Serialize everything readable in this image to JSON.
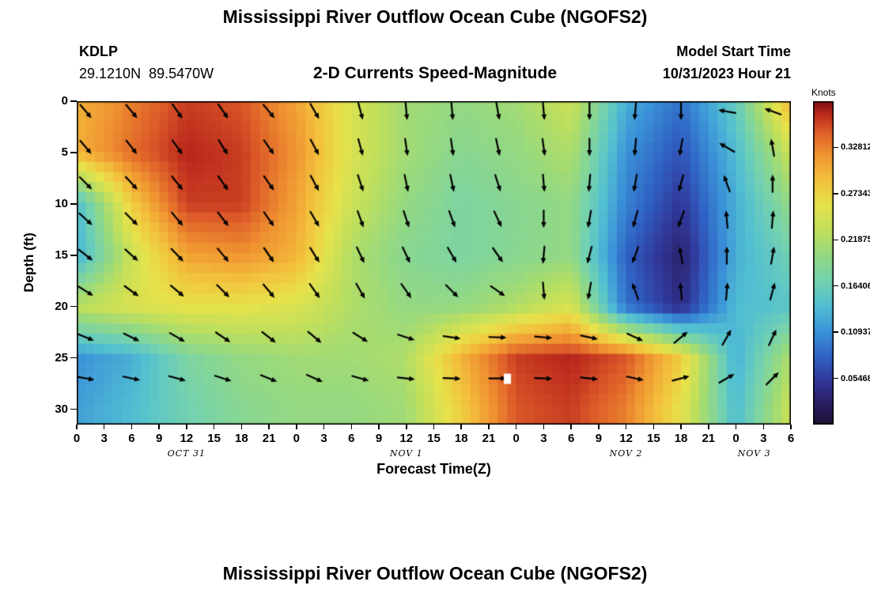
{
  "page": {
    "title_top": "Mississippi River Outflow Ocean Cube (NGOFS2)",
    "title_bottom": "Mississippi River Outflow Ocean Cube (NGOFS2)"
  },
  "header": {
    "station": "KDLP",
    "coordinates": "29.1210N  89.5470W",
    "subtitle": "2-D Currents Speed-Magnitude",
    "model_start_label": "Model Start Time",
    "model_start_value": "10/31/2023 Hour 21"
  },
  "chart_data": {
    "type": "heatmap",
    "title": "Mississippi River Outflow Ocean Cube (NGOFS2)",
    "subtitle": "2-D Currents Speed-Magnitude",
    "xlabel": "Forecast Time(Z)",
    "ylabel": "Depth (ft)",
    "hour_range": [
      0,
      78
    ],
    "depth_range_ft": [
      0,
      31.5
    ],
    "x_tick_hours": [
      0,
      3,
      6,
      9,
      12,
      15,
      18,
      21,
      24,
      27,
      30,
      33,
      36,
      39,
      42,
      45,
      48,
      51,
      54,
      57,
      60,
      63,
      66,
      69,
      72,
      75,
      78
    ],
    "x_tick_labels": [
      "0",
      "3",
      "6",
      "9",
      "12",
      "15",
      "18",
      "21",
      "0",
      "3",
      "6",
      "9",
      "12",
      "15",
      "18",
      "21",
      "0",
      "3",
      "6",
      "9",
      "12",
      "15",
      "18",
      "21",
      "0",
      "3",
      "6"
    ],
    "y_tick_depths": [
      0,
      5,
      10,
      15,
      20,
      25,
      30
    ],
    "day_labels": [
      {
        "text": "OCT 31",
        "hour": 12
      },
      {
        "text": "NOV 1",
        "hour": 36
      },
      {
        "text": "NOV 2",
        "hour": 60
      },
      {
        "text": "NOV 3",
        "hour": 74
      }
    ],
    "grid": {
      "hours": [
        0,
        6,
        12,
        18,
        24,
        30,
        36,
        42,
        48,
        54,
        60,
        66,
        72,
        78
      ],
      "depths_ft": [
        0,
        5,
        10,
        15,
        20,
        25,
        30
      ],
      "values_knots": [
        [
          0.3,
          0.33,
          0.36,
          0.35,
          0.31,
          0.25,
          0.21,
          0.2,
          0.21,
          0.24,
          0.13,
          0.09,
          0.16,
          0.3
        ],
        [
          0.3,
          0.34,
          0.37,
          0.36,
          0.32,
          0.25,
          0.21,
          0.19,
          0.2,
          0.22,
          0.11,
          0.07,
          0.14,
          0.24
        ],
        [
          0.14,
          0.28,
          0.36,
          0.36,
          0.31,
          0.24,
          0.2,
          0.18,
          0.19,
          0.2,
          0.1,
          0.05,
          0.13,
          0.2
        ],
        [
          0.13,
          0.24,
          0.31,
          0.32,
          0.3,
          0.22,
          0.19,
          0.18,
          0.19,
          0.2,
          0.08,
          0.03,
          0.13,
          0.17
        ],
        [
          0.23,
          0.25,
          0.26,
          0.26,
          0.25,
          0.22,
          0.2,
          0.2,
          0.22,
          0.25,
          0.09,
          0.04,
          0.14,
          0.15
        ],
        [
          0.11,
          0.13,
          0.18,
          0.2,
          0.21,
          0.21,
          0.22,
          0.3,
          0.36,
          0.37,
          0.35,
          0.28,
          0.13,
          0.22
        ],
        [
          0.12,
          0.14,
          0.17,
          0.19,
          0.2,
          0.2,
          0.21,
          0.28,
          0.35,
          0.36,
          0.33,
          0.26,
          0.14,
          0.24
        ]
      ]
    },
    "arrows": {
      "hours": [
        1,
        6,
        11,
        16,
        21,
        26,
        31,
        36,
        41,
        46,
        51,
        56,
        61,
        66,
        71,
        76
      ],
      "depths_ft": [
        1,
        4.5,
        8,
        11.5,
        15,
        18.5,
        23,
        27
      ],
      "angles_deg_cw_from_east": [
        [
          50,
          50,
          55,
          55,
          50,
          60,
          75,
          85,
          85,
          80,
          85,
          90,
          95,
          90,
          -170,
          -160
        ],
        [
          50,
          52,
          55,
          58,
          55,
          62,
          75,
          82,
          82,
          78,
          82,
          90,
          95,
          100,
          -150,
          -100
        ],
        [
          45,
          48,
          52,
          55,
          55,
          62,
          72,
          78,
          78,
          72,
          85,
          95,
          100,
          105,
          -110,
          -90
        ],
        [
          42,
          45,
          50,
          52,
          55,
          60,
          70,
          72,
          70,
          65,
          90,
          100,
          105,
          110,
          -95,
          -85
        ],
        [
          38,
          42,
          46,
          50,
          55,
          58,
          65,
          65,
          60,
          55,
          95,
          105,
          110,
          -100,
          -90,
          -80
        ],
        [
          32,
          36,
          40,
          45,
          50,
          55,
          60,
          55,
          45,
          35,
          85,
          100,
          -110,
          -95,
          -85,
          -75
        ],
        [
          22,
          26,
          30,
          34,
          38,
          40,
          32,
          18,
          8,
          2,
          5,
          12,
          25,
          -40,
          -60,
          -65
        ],
        [
          10,
          12,
          15,
          18,
          22,
          24,
          16,
          6,
          2,
          0,
          2,
          6,
          12,
          -15,
          -30,
          -45
        ]
      ]
    },
    "marker": {
      "hour": 47,
      "depth_ft": 27,
      "color": "#ffffff"
    },
    "colorbar": {
      "label": "Knots",
      "vmin": 0,
      "vmax": 0.38281,
      "tick_values": [
        0.32812,
        0.27343,
        0.21875,
        0.16406,
        0.10937,
        0.05468
      ],
      "tick_labels": [
        "0.32812",
        "0.27343",
        "0.21875",
        "0.16406",
        "0.10937",
        "0.05468"
      ]
    },
    "colormap_stops": [
      [
        0.0,
        "#1b1030"
      ],
      [
        0.07,
        "#2a1f66"
      ],
      [
        0.14,
        "#31399b"
      ],
      [
        0.21,
        "#2f62c4"
      ],
      [
        0.29,
        "#3b93d8"
      ],
      [
        0.37,
        "#52bfd2"
      ],
      [
        0.45,
        "#74d2ae"
      ],
      [
        0.53,
        "#97d97e"
      ],
      [
        0.6,
        "#bfdf5c"
      ],
      [
        0.68,
        "#e6e24b"
      ],
      [
        0.76,
        "#f3c03c"
      ],
      [
        0.84,
        "#ef9130"
      ],
      [
        0.91,
        "#dc5a28"
      ],
      [
        0.96,
        "#bb2a1d"
      ],
      [
        1.0,
        "#7e1013"
      ]
    ]
  }
}
